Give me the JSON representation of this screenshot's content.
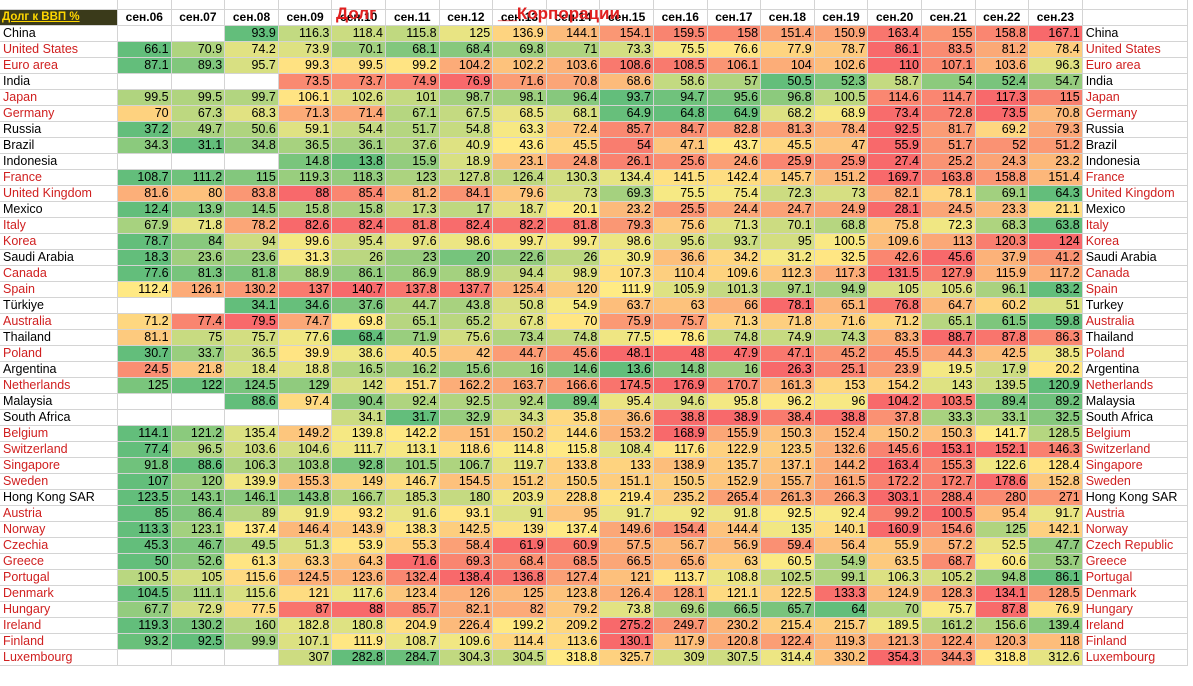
{
  "titles": {
    "left": "Долг",
    "right": "__Корпорации"
  },
  "corner_label": "Долг к ВВП %",
  "chart_data": {
    "type": "heatmap",
    "title": "Долг __Корпорации",
    "columns": [
      "сен.06",
      "сен.07",
      "сен.08",
      "сен.09",
      "сен.10",
      "сен.11",
      "сен.12",
      "сен.13",
      "сен.14",
      "сен.15",
      "сен.16",
      "сен.17",
      "сен.18",
      "сен.19",
      "сен.20",
      "сен.21",
      "сен.22",
      "сен.23"
    ],
    "rows": [
      {
        "name": "China",
        "right_name": "China",
        "red": false,
        "values": [
          null,
          null,
          93.9,
          116.3,
          118.4,
          115.8,
          125,
          136.9,
          144.1,
          154.1,
          159.5,
          158,
          151.4,
          150.9,
          163.4,
          155,
          158.8,
          167.1
        ]
      },
      {
        "name": "United States",
        "right_name": "United States",
        "red": true,
        "values": [
          66.1,
          70.9,
          74.2,
          73.9,
          70.1,
          68.1,
          68.4,
          69.8,
          71,
          73.3,
          75.5,
          76.6,
          77.9,
          78.7,
          86.1,
          83.5,
          81.2,
          78.4
        ]
      },
      {
        "name": "Euro area",
        "right_name": "Euro area",
        "red": true,
        "values": [
          87.1,
          89.3,
          95.7,
          99.3,
          99.5,
          99.2,
          104.2,
          102.2,
          103.6,
          108.6,
          108.5,
          106.1,
          104,
          102.6,
          110,
          107.1,
          103.6,
          96.3
        ]
      },
      {
        "name": "India",
        "right_name": "India",
        "red": false,
        "values": [
          null,
          null,
          null,
          73.5,
          73.7,
          74.9,
          76.9,
          71.6,
          70.8,
          68.6,
          58.6,
          57,
          50.5,
          52.3,
          58.7,
          54,
          52.4,
          54.7
        ]
      },
      {
        "name": "Japan",
        "right_name": "Japan",
        "red": true,
        "values": [
          99.5,
          99.5,
          99.7,
          106.1,
          102.6,
          101,
          98.7,
          98.1,
          96.4,
          93.7,
          94.7,
          95.6,
          96.8,
          100.5,
          114.6,
          114.7,
          117.3,
          115
        ]
      },
      {
        "name": "Germany",
        "right_name": "Germany",
        "red": true,
        "values": [
          70,
          67.3,
          68.3,
          71.3,
          71.4,
          67.1,
          67.5,
          68.5,
          68.1,
          64.9,
          64.8,
          64.9,
          68.2,
          68.9,
          73.4,
          72.8,
          73.5,
          70.8
        ]
      },
      {
        "name": "Russia",
        "right_name": "Russia",
        "red": false,
        "values": [
          37.2,
          49.7,
          50.6,
          59.1,
          54.4,
          51.7,
          54.8,
          63.3,
          72.4,
          85.7,
          84.7,
          82.8,
          81.3,
          78.4,
          92.5,
          81.7,
          69.2,
          79.3
        ]
      },
      {
        "name": "Brazil",
        "right_name": "Brazil",
        "red": false,
        "values": [
          34.3,
          31.1,
          34.8,
          36.5,
          36.1,
          37.6,
          40.9,
          43.6,
          45.5,
          54,
          47.1,
          43.7,
          45.5,
          47,
          55.9,
          51.7,
          52,
          51.2
        ]
      },
      {
        "name": "Indonesia",
        "right_name": "Indonesia",
        "red": false,
        "values": [
          null,
          null,
          null,
          14.8,
          13.8,
          15.9,
          18.9,
          23.1,
          24.8,
          26.1,
          25.6,
          24.6,
          25.9,
          25.9,
          27.4,
          25.2,
          24.3,
          23.2
        ]
      },
      {
        "name": "France",
        "right_name": "France",
        "red": true,
        "values": [
          108.7,
          111.2,
          115,
          119.3,
          118.3,
          123,
          127.8,
          126.4,
          130.3,
          134.4,
          141.5,
          142.4,
          145.7,
          151.2,
          169.7,
          163.8,
          158.8,
          151.4
        ]
      },
      {
        "name": "United Kingdom",
        "right_name": "United Kingdom",
        "red": true,
        "values": [
          81.6,
          80,
          83.8,
          88,
          85.4,
          81.2,
          84.1,
          79.6,
          73,
          69.3,
          75.5,
          75.4,
          72.3,
          73,
          82.1,
          78.1,
          69.1,
          64.3
        ]
      },
      {
        "name": "Mexico",
        "right_name": "Mexico",
        "red": false,
        "values": [
          12.4,
          13.9,
          14.5,
          15.8,
          15.8,
          17.3,
          17,
          18.7,
          20.1,
          23.2,
          25.5,
          24.4,
          24.7,
          24.9,
          28.1,
          24.5,
          23.3,
          21.1
        ]
      },
      {
        "name": "Italy",
        "right_name": "Italy",
        "red": true,
        "values": [
          67.9,
          71.8,
          78.2,
          82.6,
          82.4,
          81.8,
          82.4,
          82.2,
          81.8,
          79.3,
          75.6,
          71.3,
          70.1,
          68.8,
          75.8,
          72.3,
          68.3,
          63.8
        ]
      },
      {
        "name": "Korea",
        "right_name": "Korea",
        "red": true,
        "values": [
          78.7,
          84,
          94,
          99.6,
          95.4,
          97.6,
          98.6,
          99.7,
          99.7,
          98.6,
          95.6,
          93.7,
          95,
          100.5,
          109.6,
          113,
          120.3,
          124
        ]
      },
      {
        "name": "Saudi Arabia",
        "right_name": "Saudi Arabia",
        "red": false,
        "values": [
          18.3,
          23.6,
          23.6,
          31.3,
          26,
          23,
          20,
          22.6,
          26,
          30.9,
          36.6,
          34.2,
          31.2,
          32.5,
          42.6,
          45.6,
          37.9,
          41.2
        ]
      },
      {
        "name": "Canada",
        "right_name": "Canada",
        "red": true,
        "values": [
          77.6,
          81.3,
          81.8,
          88.9,
          86.1,
          86.9,
          88.9,
          94.4,
          98.9,
          107.3,
          110.4,
          109.6,
          112.3,
          117.3,
          131.5,
          127.9,
          115.9,
          117.2
        ]
      },
      {
        "name": "Spain",
        "right_name": "Spain",
        "red": true,
        "values": [
          112.4,
          126.1,
          130.2,
          137,
          140.7,
          137.8,
          137.7,
          125.4,
          120,
          111.9,
          105.9,
          101.3,
          97.1,
          94.9,
          105,
          105.6,
          96.1,
          83.2
        ]
      },
      {
        "name": "Türkiye",
        "right_name": "Turkey",
        "red": false,
        "values": [
          null,
          null,
          34.1,
          34.6,
          37.6,
          44.7,
          43.8,
          50.8,
          54.9,
          63.7,
          63,
          66,
          78.1,
          65.1,
          76.8,
          64.7,
          60.2,
          51
        ]
      },
      {
        "name": "Australia",
        "right_name": "Australia",
        "red": true,
        "values": [
          71.2,
          77.4,
          79.5,
          74.7,
          69.8,
          65.1,
          65.2,
          67.8,
          70,
          75.9,
          75.7,
          71.3,
          71.8,
          71.6,
          71.2,
          65.1,
          61.5,
          59.8
        ]
      },
      {
        "name": "Thailand",
        "right_name": "Thailand",
        "red": false,
        "values": [
          81.1,
          75,
          75.7,
          77.6,
          68.4,
          71.9,
          75.6,
          73.4,
          74.8,
          77.5,
          78.6,
          74.8,
          74.9,
          74.3,
          83.3,
          88.7,
          87.8,
          86.3
        ]
      },
      {
        "name": "Poland",
        "right_name": "Poland",
        "red": true,
        "values": [
          30.7,
          33.7,
          36.5,
          39.9,
          38.6,
          40.5,
          42,
          44.7,
          45.6,
          48.1,
          48,
          47.9,
          47.1,
          45.2,
          45.5,
          44.3,
          42.5,
          38.5
        ]
      },
      {
        "name": "Argentina",
        "right_name": "Argentina",
        "red": false,
        "values": [
          24.5,
          21.8,
          18.4,
          18.8,
          16.5,
          16.2,
          15.6,
          16,
          14.6,
          13.6,
          14.8,
          16,
          26.3,
          25.1,
          23.9,
          19.5,
          17.9,
          20.2
        ]
      },
      {
        "name": "Netherlands",
        "right_name": "Netherlands",
        "red": true,
        "values": [
          125,
          122,
          124.5,
          129,
          142,
          151.7,
          162.2,
          163.7,
          166.6,
          174.5,
          176.9,
          170.7,
          161.3,
          153,
          154.2,
          143,
          139.5,
          120.9
        ]
      },
      {
        "name": "Malaysia",
        "right_name": "Malaysia",
        "red": false,
        "values": [
          null,
          null,
          88.6,
          97.4,
          90.4,
          92.4,
          92.5,
          92.4,
          89.4,
          95.4,
          94.6,
          95.8,
          96.2,
          96,
          104.2,
          103.5,
          89.4,
          89.2
        ]
      },
      {
        "name": "South Africa",
        "right_name": "South Africa",
        "red": false,
        "values": [
          null,
          null,
          null,
          null,
          34.1,
          31.7,
          32.9,
          34.3,
          35.8,
          36.6,
          38.8,
          38.9,
          38.4,
          38.8,
          37.8,
          33.3,
          33.1,
          32.5
        ]
      },
      {
        "name": "Belgium",
        "right_name": "Belgium",
        "red": true,
        "values": [
          114.1,
          121.2,
          135.4,
          149.2,
          139.8,
          142.2,
          151,
          150.2,
          144.6,
          153.2,
          168.9,
          155.9,
          150.3,
          152.4,
          150.2,
          150.3,
          141.7,
          128.5
        ]
      },
      {
        "name": "Switzerland",
        "right_name": "Switzerland",
        "red": true,
        "values": [
          77.4,
          96.5,
          103.6,
          104.6,
          111.7,
          113.1,
          118.6,
          114.8,
          115.8,
          108.4,
          117.6,
          122.9,
          123.5,
          132.6,
          145.6,
          153.1,
          152.1,
          146.3
        ]
      },
      {
        "name": "Singapore",
        "right_name": "Singapore",
        "red": true,
        "values": [
          91.8,
          88.6,
          106.3,
          103.8,
          92.8,
          101.5,
          106.7,
          119.7,
          133.8,
          133,
          138.9,
          135.7,
          137.1,
          144.2,
          163.4,
          155.3,
          122.6,
          128.4
        ]
      },
      {
        "name": "Sweden",
        "right_name": "Sweden",
        "red": true,
        "values": [
          107,
          120,
          139.9,
          155.3,
          149,
          146.7,
          154.5,
          151.2,
          150.5,
          151.1,
          150.5,
          152.9,
          155.7,
          161.5,
          172.2,
          172.7,
          178.6,
          152.8
        ]
      },
      {
        "name": "Hong Kong SAR",
        "right_name": "Hong Kong SAR",
        "red": false,
        "values": [
          123.5,
          143.1,
          146.1,
          143.8,
          166.7,
          185.3,
          180,
          203.9,
          228.8,
          219.4,
          235.2,
          265.4,
          261.3,
          266.3,
          303.1,
          288.4,
          280,
          271
        ]
      },
      {
        "name": "Austria",
        "right_name": "Austria",
        "red": true,
        "values": [
          85,
          86.4,
          89,
          91.9,
          93.2,
          91.6,
          93.1,
          91,
          95,
          91.7,
          92,
          91.8,
          92.5,
          92.4,
          99.2,
          100.5,
          95.4,
          91.7
        ]
      },
      {
        "name": "Norway",
        "right_name": "Norway",
        "red": true,
        "values": [
          113.3,
          123.1,
          137.4,
          146.4,
          143.9,
          138.3,
          142.5,
          139,
          137.4,
          149.6,
          154.4,
          144.4,
          135,
          140.1,
          160.9,
          154.6,
          125,
          142.1
        ]
      },
      {
        "name": "Czechia",
        "right_name": "Czech Republic",
        "red": true,
        "values": [
          45.3,
          46.7,
          49.5,
          51.3,
          53.9,
          55.3,
          58.4,
          61.9,
          60.9,
          57.5,
          56.7,
          56.9,
          59.4,
          56.4,
          55.9,
          57.2,
          52.5,
          47.7
        ]
      },
      {
        "name": "Greece",
        "right_name": "Greece",
        "red": true,
        "values": [
          50,
          52.6,
          61.3,
          63.3,
          64.3,
          71.6,
          69.3,
          68.4,
          68.5,
          66.5,
          65.6,
          63,
          60.5,
          54.9,
          63.5,
          68.7,
          60.6,
          53.7
        ]
      },
      {
        "name": "Portugal",
        "right_name": "Portugal",
        "red": true,
        "values": [
          100.5,
          105,
          115.6,
          124.5,
          123.6,
          132.4,
          138.4,
          136.8,
          127.4,
          121,
          113.7,
          108.8,
          102.5,
          99.1,
          106.3,
          105.2,
          94.8,
          86.1
        ]
      },
      {
        "name": "Denmark",
        "right_name": "Denmark",
        "red": true,
        "values": [
          104.5,
          111.1,
          115.6,
          121,
          117.6,
          123.4,
          126,
          125,
          123.8,
          126.4,
          128.1,
          121.1,
          122.5,
          133.3,
          124.9,
          128.3,
          134.1,
          128.5
        ]
      },
      {
        "name": "Hungary",
        "right_name": "Hungary",
        "red": true,
        "values": [
          67.7,
          72.9,
          77.5,
          87,
          88,
          85.7,
          82.1,
          82,
          79.2,
          73.8,
          69.6,
          66.5,
          65.7,
          64,
          70,
          75.7,
          87.8,
          76.9
        ]
      },
      {
        "name": "Ireland",
        "right_name": "Ireland",
        "red": true,
        "values": [
          119.3,
          130.2,
          160,
          182.8,
          180.8,
          204.9,
          226.4,
          199.2,
          209.2,
          275.2,
          249.7,
          230.2,
          215.4,
          215.7,
          189.5,
          161.2,
          156.6,
          139.4
        ]
      },
      {
        "name": "Finland",
        "right_name": "Finland",
        "red": true,
        "values": [
          93.2,
          92.5,
          99.9,
          107.1,
          111.9,
          108.7,
          109.6,
          114.4,
          113.6,
          130.1,
          117.9,
          120.8,
          122.4,
          119.3,
          121.3,
          122.4,
          120.3,
          118
        ]
      },
      {
        "name": "Luxembourg",
        "right_name": "Luxembourg",
        "red": true,
        "values": [
          null,
          null,
          null,
          307,
          282.8,
          284.7,
          304.3,
          304.5,
          318.8,
          325.7,
          309,
          307.5,
          314.4,
          330.2,
          354.3,
          344.3,
          318.8,
          312.6
        ]
      }
    ]
  }
}
